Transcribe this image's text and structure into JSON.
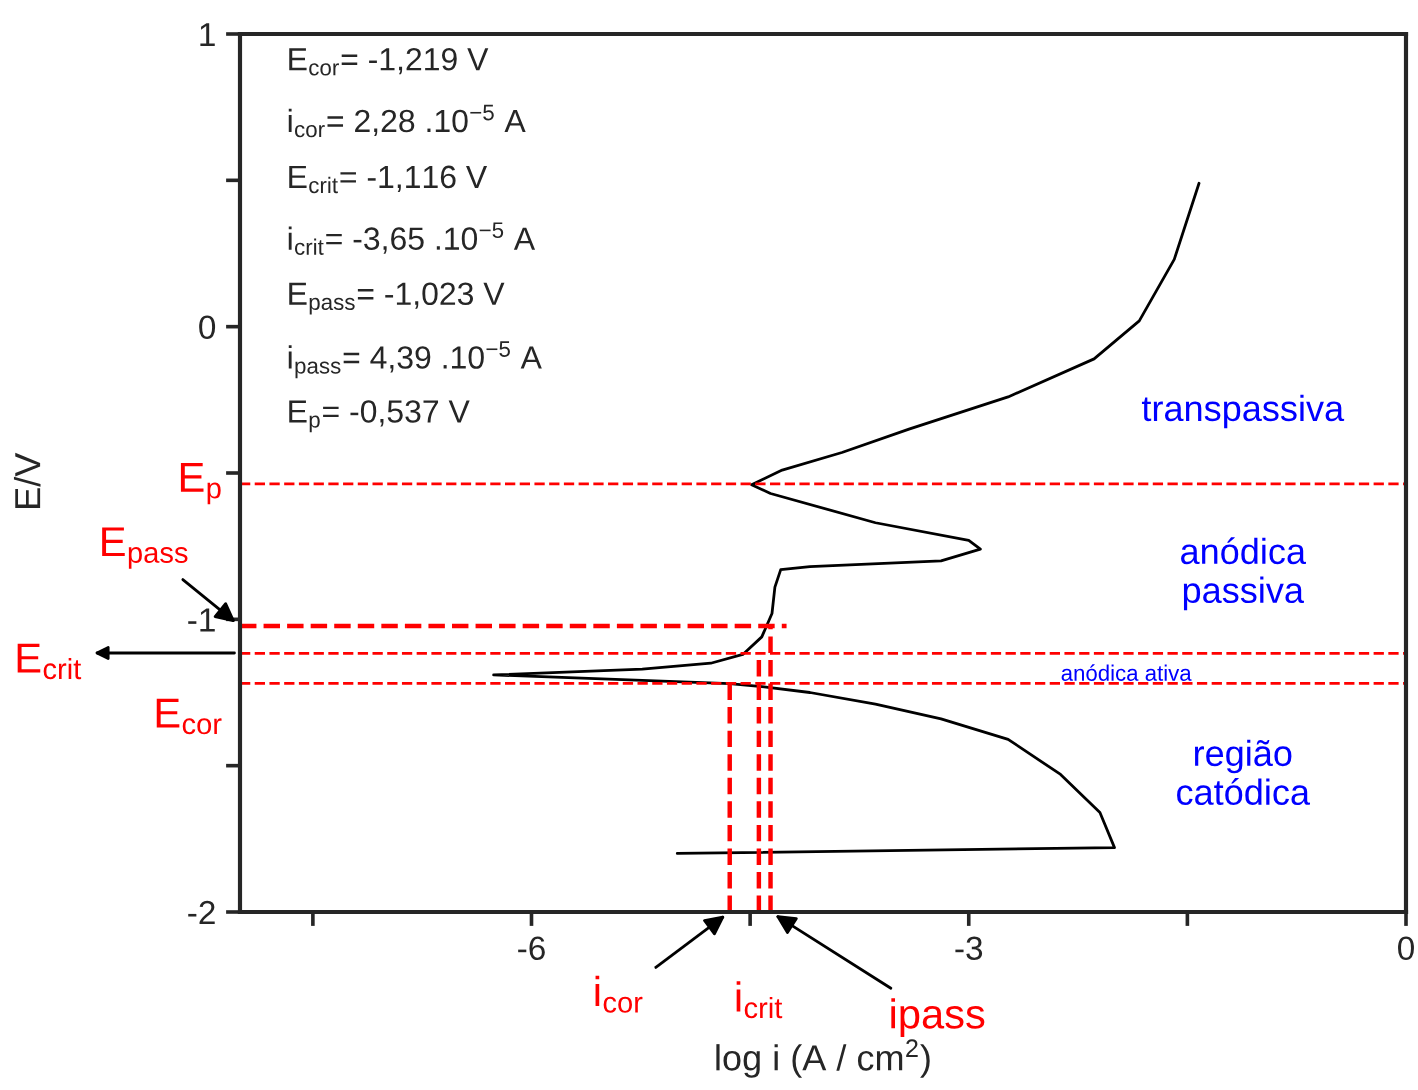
{
  "chart_data": {
    "type": "line",
    "xlabel": "log i (A / cm$^{2}$)",
    "ylabel": "E/V",
    "xlim": [
      -8,
      0
    ],
    "ylim": [
      -2,
      1
    ],
    "xticks": [
      {
        "value": -7.5,
        "label": null
      },
      -6,
      {
        "value": -4.5,
        "label": null
      },
      -3,
      {
        "value": -1.5,
        "label": null
      },
      0
    ],
    "yticks": [
      -2,
      {
        "value": -1.5,
        "label": null
      },
      -1,
      {
        "value": -0.5,
        "label": null
      },
      0,
      {
        "value": 0.5,
        "label": null
      },
      1
    ],
    "grid": false,
    "legend": false,
    "marker": "none",
    "series": [
      {
        "color": "#000000",
        "line_style": "solid",
        "x": [
          -5.0,
          -2.0,
          -2.1,
          -2.37,
          -2.73,
          -3.19,
          -3.64,
          -4.09,
          -4.42,
          -4.64,
          -6.26,
          -5.24,
          -4.77,
          -4.55,
          -4.42,
          -4.35,
          -4.33,
          -4.29,
          -4.09,
          -3.19,
          -2.92,
          -3.0,
          -3.64,
          -4.36,
          -4.49,
          -4.28,
          -3.87,
          -3.41,
          -2.73,
          -2.14,
          -1.83,
          -1.59,
          -1.42
        ],
        "values": [
          -1.8,
          -1.78,
          -1.66,
          -1.53,
          -1.41,
          -1.34,
          -1.29,
          -1.25,
          -1.23,
          -1.22,
          -1.19,
          -1.17,
          -1.15,
          -1.12,
          -1.06,
          -0.98,
          -0.89,
          -0.83,
          -0.82,
          -0.8,
          -0.76,
          -0.73,
          -0.67,
          -0.57,
          -0.54,
          -0.49,
          -0.43,
          -0.35,
          -0.24,
          -0.11,
          0.02,
          0.23,
          0.49
        ]
      },
      {
        "color": "#ff0000",
        "line_style": "dashed",
        "x": [
          -8,
          -4.25
        ],
        "values": [
          -1.023,
          -1.023
        ]
      },
      {
        "color": "#ff0000",
        "line_style": "dashed",
        "x": [
          -4.64,
          -4.64
        ],
        "values": [
          -2,
          -1.219
        ]
      },
      {
        "color": "#ff0000",
        "line_style": "dashed",
        "x": [
          -4.44,
          -4.44
        ],
        "values": [
          -2,
          -1.116
        ]
      },
      {
        "color": "#ff0000",
        "line_style": "dashed",
        "x": [
          -4.36,
          -4.36
        ],
        "values": [
          -2,
          -1.023
        ]
      }
    ],
    "ref_lines": [
      {
        "axis": "y",
        "value": -0.537,
        "color": "#ff0000",
        "line_style": "dashed"
      },
      {
        "axis": "y",
        "value": -1.116,
        "color": "#ff0000",
        "line_style": "dashed"
      },
      {
        "axis": "y",
        "value": -1.219,
        "color": "#ff0000",
        "line_style": "dashed"
      }
    ],
    "annotations": [
      "E$_{cor}$= -1,219 V",
      "i$_{cor}$= 2,28 .10$^{−5}$ A",
      "E$_{crit}$= -1,116 V",
      "i$_{crit}$= -3,65 .10$^{−5}$ A",
      "E$_{pass}$= -1,023 V",
      "i$_{pass}$= 4,39 .10$^{−5}$ A",
      "E$_{p}$= -0,537 V",
      {
        "text": "E$_{p}$",
        "x": -8,
        "y": -0.537
      },
      {
        "text": "E$_{pass}$",
        "x": -8,
        "y": -1.023
      },
      {
        "text": "E$_{cor}$",
        "x": -8,
        "y": -1.219
      },
      {
        "text": "i$_{cor}$",
        "x": -4.64,
        "y": -2
      },
      {
        "text": "i$_{crit}$",
        "x": -4.44,
        "y": -2
      },
      {
        "text": "ipass",
        "x": -4.36,
        "y": -2
      },
      "transpassiva",
      "anódica\npassiva",
      "anódica ativa",
      "região\ncatódica",
      "E$_{crit}$"
    ]
  }
}
